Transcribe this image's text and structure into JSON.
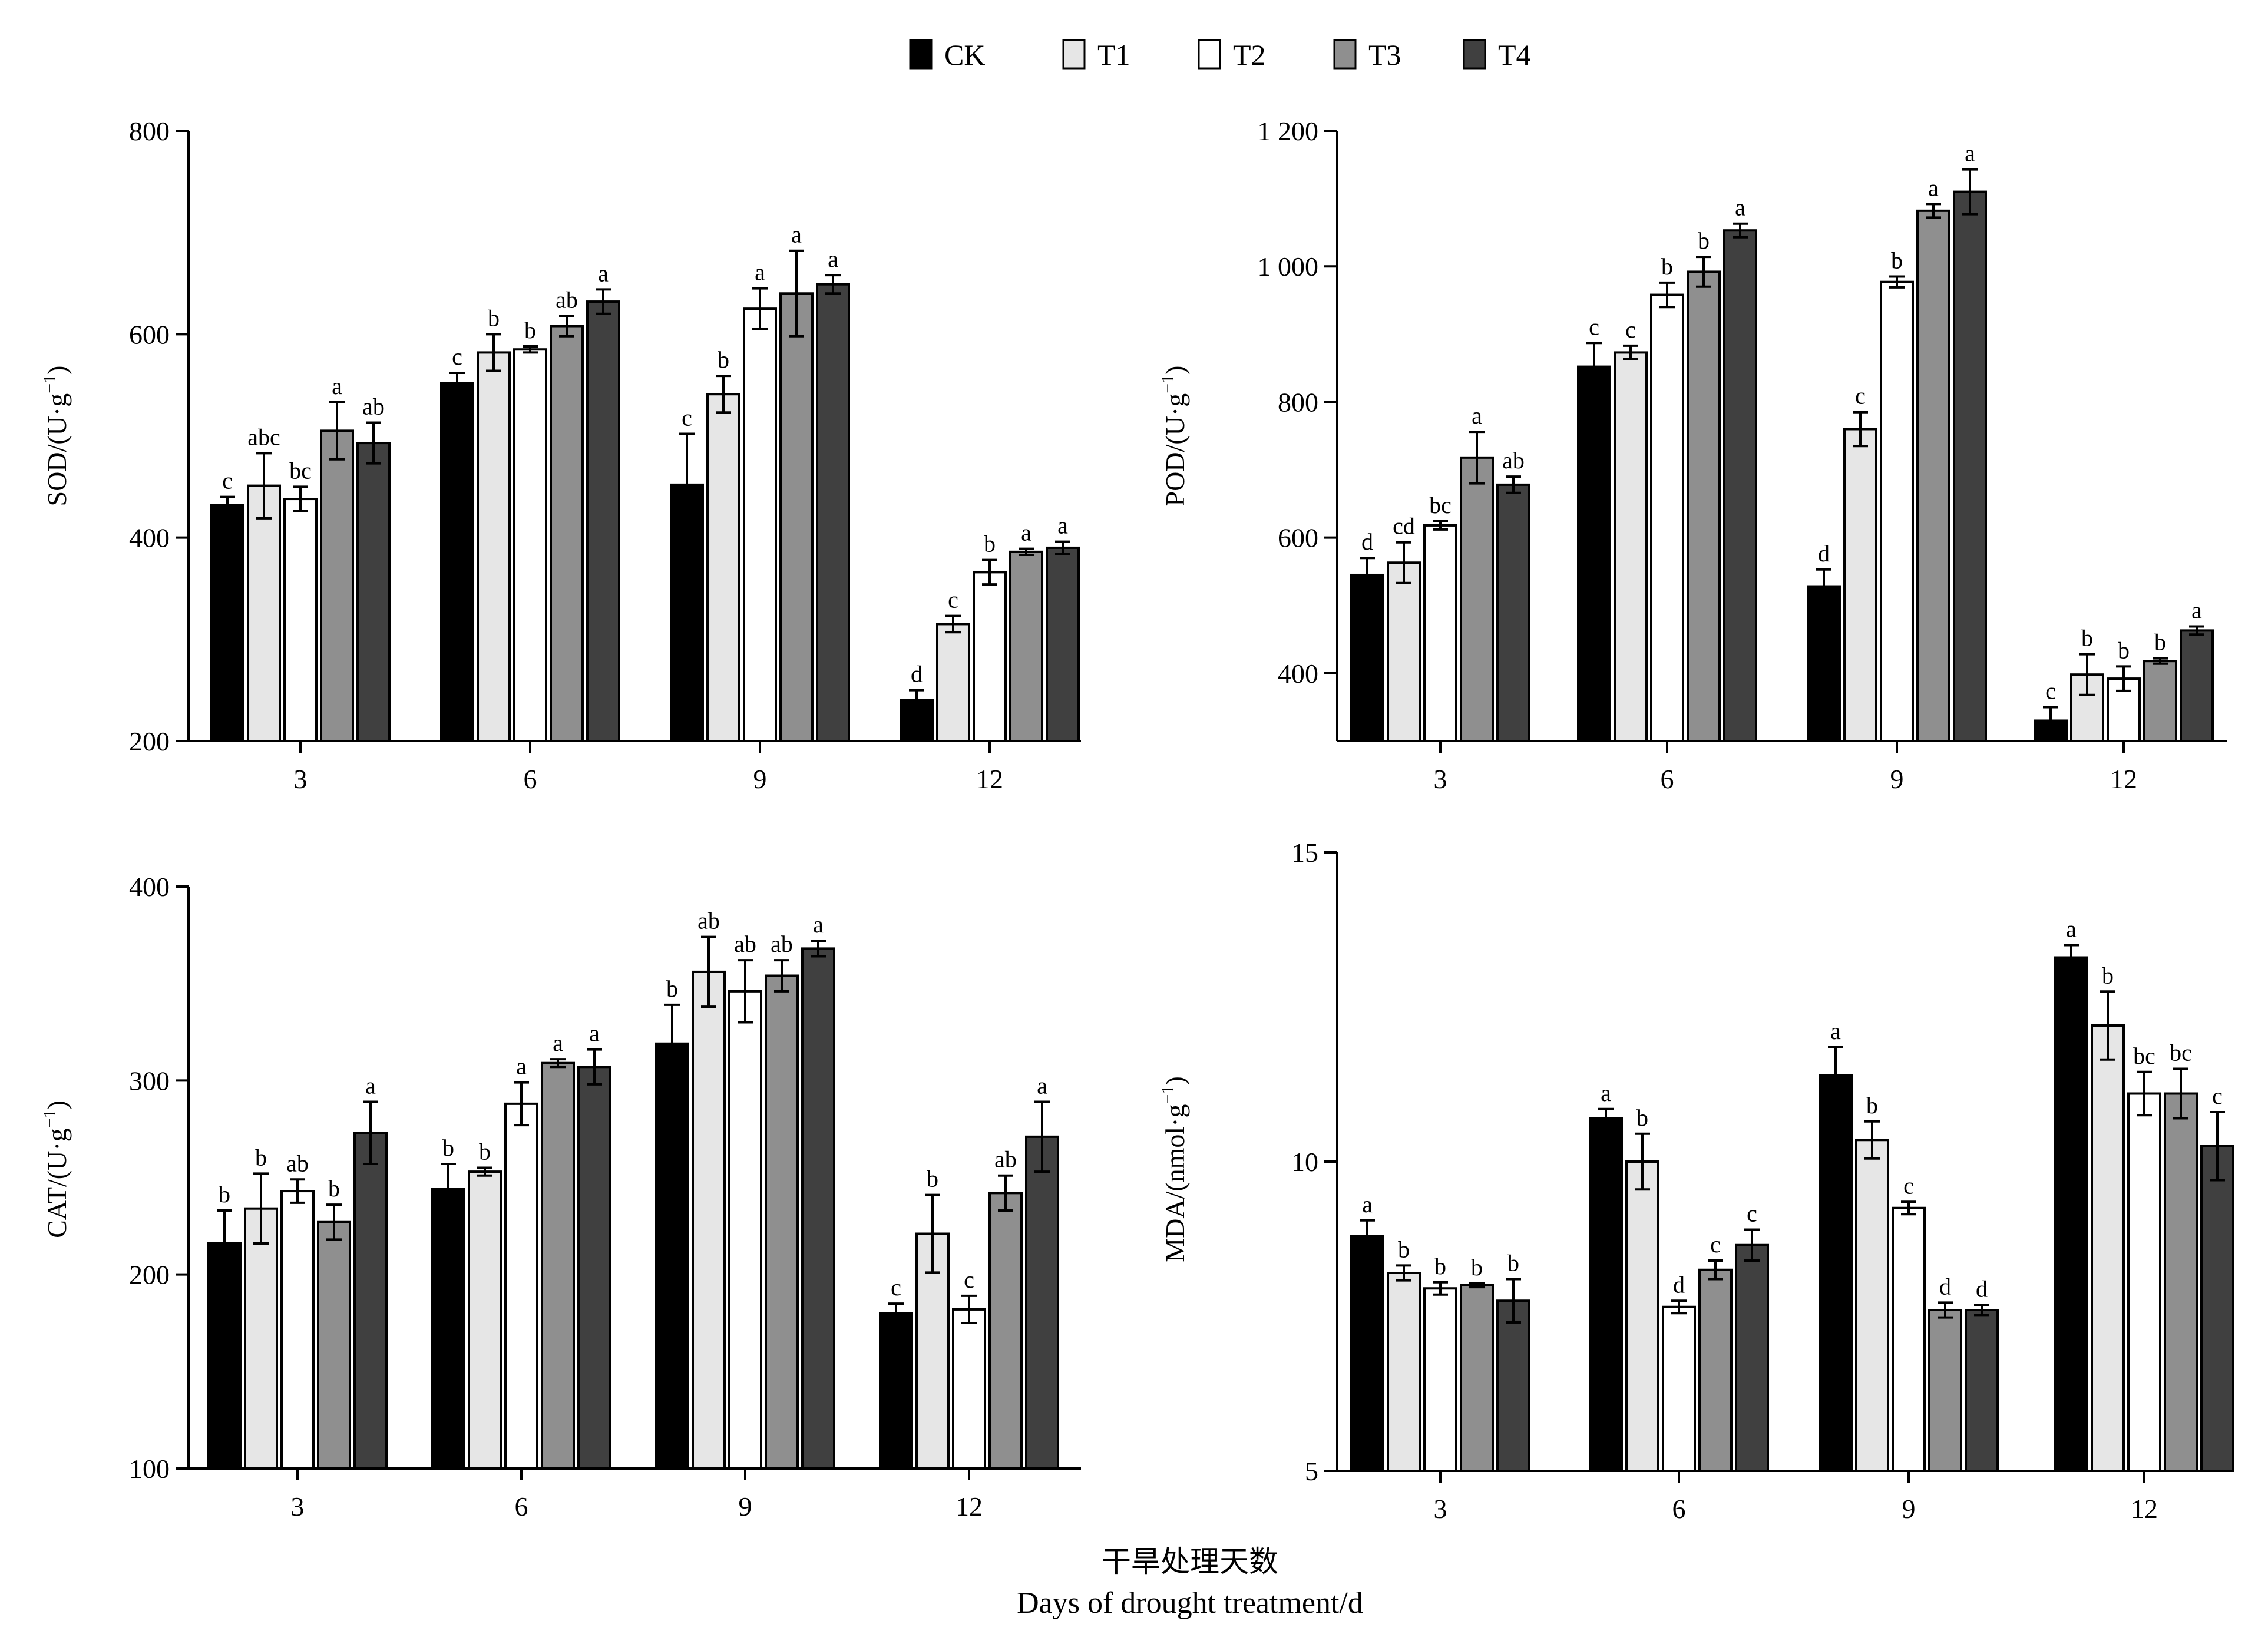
{
  "legend": [
    {
      "name": "CK",
      "color": "#000000"
    },
    {
      "name": "T1",
      "color": "#e6e6e6"
    },
    {
      "name": "T2",
      "color": "#ffffff"
    },
    {
      "name": "T3",
      "color": "#8f8f8f"
    },
    {
      "name": "T4",
      "color": "#404040"
    }
  ],
  "xlabel_cn": "干旱处理天数",
  "xlabel_en": "Days of drought treatment/d",
  "chart_data": [
    {
      "type": "bar",
      "id": "sod",
      "ylabel_text": "SOD/(U·g",
      "ylabel_sup": "−1",
      "ylabel_close": ")",
      "categories": [
        "3",
        "6",
        "9",
        "12"
      ],
      "ylim": [
        200,
        800
      ],
      "yticks": [
        200,
        400,
        600,
        800
      ],
      "ytick_labels": [
        "200",
        "400",
        "600",
        "800"
      ],
      "series": [
        {
          "name": "CK",
          "values": [
            432,
            552,
            452,
            240
          ],
          "errors": [
            8,
            10,
            50,
            10
          ],
          "letters": [
            "c",
            "c",
            "c",
            "d"
          ]
        },
        {
          "name": "T1",
          "values": [
            451,
            582,
            541,
            315
          ],
          "errors": [
            32,
            18,
            18,
            8
          ],
          "letters": [
            "abc",
            "b",
            "b",
            "c"
          ]
        },
        {
          "name": "T2",
          "values": [
            438,
            585,
            625,
            366
          ],
          "errors": [
            12,
            3,
            20,
            12
          ],
          "letters": [
            "bc",
            "b",
            "a",
            "b"
          ]
        },
        {
          "name": "T3",
          "values": [
            505,
            608,
            640,
            386
          ],
          "errors": [
            28,
            10,
            42,
            3
          ],
          "letters": [
            "a",
            "ab",
            "a",
            "a"
          ]
        },
        {
          "name": "T4",
          "values": [
            493,
            632,
            649,
            390
          ],
          "errors": [
            20,
            12,
            9,
            6
          ],
          "letters": [
            "ab",
            "a",
            "a",
            "a"
          ]
        }
      ]
    },
    {
      "type": "bar",
      "id": "pod",
      "ylabel_text": "POD/(U·g",
      "ylabel_sup": "−1",
      "ylabel_close": ")",
      "categories": [
        "3",
        "6",
        "9",
        "12"
      ],
      "ylim": [
        300,
        1200
      ],
      "yticks": [
        400,
        600,
        800,
        1000,
        1200
      ],
      "ytick_labels": [
        "400",
        "600",
        "800",
        "1 000",
        "1 200"
      ],
      "series": [
        {
          "name": "CK",
          "values": [
            545,
            852,
            528,
            330
          ],
          "errors": [
            25,
            35,
            25,
            20
          ],
          "letters": [
            "d",
            "c",
            "d",
            "c"
          ]
        },
        {
          "name": "T1",
          "values": [
            563,
            873,
            760,
            398
          ],
          "errors": [
            30,
            10,
            25,
            30
          ],
          "letters": [
            "cd",
            "c",
            "c",
            "b"
          ]
        },
        {
          "name": "T2",
          "values": [
            618,
            958,
            977,
            392
          ],
          "errors": [
            6,
            18,
            8,
            18
          ],
          "letters": [
            "bc",
            "b",
            "b",
            "b"
          ]
        },
        {
          "name": "T3",
          "values": [
            718,
            992,
            1082,
            418
          ],
          "errors": [
            38,
            22,
            10,
            4
          ],
          "letters": [
            "a",
            "b",
            "a",
            "b"
          ]
        },
        {
          "name": "T4",
          "values": [
            678,
            1053,
            1110,
            463
          ],
          "errors": [
            12,
            10,
            33,
            6
          ],
          "letters": [
            "ab",
            "a",
            "a",
            "a"
          ]
        }
      ]
    },
    {
      "type": "bar",
      "id": "cat",
      "ylabel_text": "CAT/(U·g",
      "ylabel_sup": "−1",
      "ylabel_close": ")",
      "categories": [
        "3",
        "6",
        "9",
        "12"
      ],
      "ylim": [
        100,
        400
      ],
      "yticks": [
        100,
        200,
        300,
        400
      ],
      "ytick_labels": [
        "100",
        "200",
        "300",
        "400"
      ],
      "series": [
        {
          "name": "CK",
          "values": [
            216,
            244,
            319,
            180
          ],
          "errors": [
            17,
            13,
            20,
            5
          ],
          "letters": [
            "b",
            "b",
            "b",
            "c"
          ]
        },
        {
          "name": "T1",
          "values": [
            234,
            253,
            356,
            221
          ],
          "errors": [
            18,
            2,
            18,
            20
          ],
          "letters": [
            "b",
            "b",
            "ab",
            "b"
          ]
        },
        {
          "name": "T2",
          "values": [
            243,
            288,
            346,
            182
          ],
          "errors": [
            6,
            11,
            16,
            7
          ],
          "letters": [
            "ab",
            "a",
            "ab",
            "c"
          ]
        },
        {
          "name": "T3",
          "values": [
            227,
            309,
            354,
            242
          ],
          "errors": [
            9,
            2,
            8,
            9
          ],
          "letters": [
            "b",
            "a",
            "ab",
            "ab"
          ]
        },
        {
          "name": "T4",
          "values": [
            273,
            307,
            368,
            271
          ],
          "errors": [
            16,
            9,
            4,
            18
          ],
          "letters": [
            "a",
            "a",
            "a",
            "a"
          ]
        }
      ]
    },
    {
      "type": "bar",
      "id": "mda",
      "ylabel_text": "MDA/(nmol·g",
      "ylabel_sup": "−1",
      "ylabel_close": ")",
      "categories": [
        "3",
        "6",
        "9",
        "12"
      ],
      "ylim": [
        5,
        15
      ],
      "yticks": [
        5,
        10,
        15
      ],
      "ytick_labels": [
        "5",
        "10",
        "15"
      ],
      "series": [
        {
          "name": "CK",
          "values": [
            8.8,
            10.7,
            11.4,
            13.3
          ],
          "errors": [
            0.25,
            0.15,
            0.45,
            0.2
          ],
          "letters": [
            "a",
            "a",
            "a",
            "a"
          ]
        },
        {
          "name": "T1",
          "values": [
            8.2,
            10.0,
            10.35,
            12.2
          ],
          "errors": [
            0.12,
            0.45,
            0.3,
            0.55
          ],
          "letters": [
            "b",
            "b",
            "b",
            "b"
          ]
        },
        {
          "name": "T2",
          "values": [
            7.95,
            7.65,
            9.25,
            11.1
          ],
          "errors": [
            0.1,
            0.1,
            0.1,
            0.35
          ],
          "letters": [
            "b",
            "d",
            "c",
            "bc"
          ]
        },
        {
          "name": "T3",
          "values": [
            8.0,
            8.25,
            7.6,
            11.1
          ],
          "errors": [
            0.03,
            0.15,
            0.12,
            0.4
          ],
          "letters": [
            "b",
            "c",
            "d",
            "bc"
          ]
        },
        {
          "name": "T4",
          "values": [
            7.75,
            8.65,
            7.6,
            10.25
          ],
          "errors": [
            0.35,
            0.25,
            0.08,
            0.55
          ],
          "letters": [
            "b",
            "c",
            "d",
            "c"
          ]
        }
      ]
    }
  ]
}
